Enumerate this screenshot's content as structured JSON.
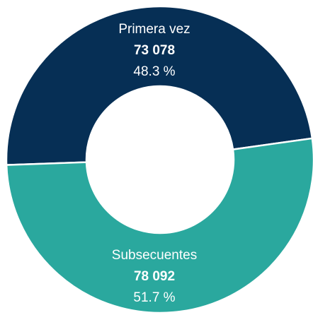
{
  "chart_data": {
    "type": "donut",
    "categories": [
      "Primera vez",
      "Subsecuentes"
    ],
    "values": [
      73078,
      78092
    ],
    "value_labels": [
      "73 078",
      "78 092"
    ],
    "percents": [
      48.3,
      51.7
    ],
    "percent_labels": [
      "48.3 %",
      "51.7 %"
    ],
    "colors": [
      "#062f55",
      "#2aa89e"
    ]
  }
}
